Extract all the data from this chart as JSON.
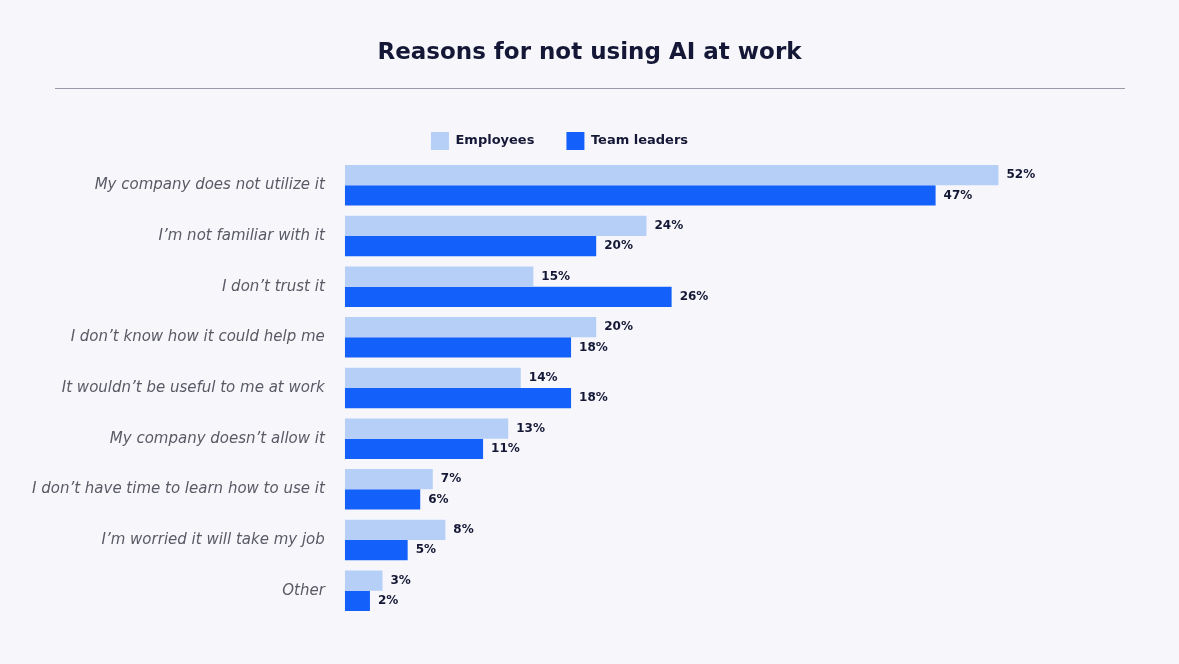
{
  "chart_data": {
    "type": "bar",
    "orientation": "horizontal",
    "title": "Reasons for not using AI at work",
    "categories": [
      "My company does not utilize it",
      "I’m not familiar with it",
      "I don’t trust it",
      "I don’t know how it could help me",
      "It wouldn’t be useful to me at work",
      "My company doesn’t allow it",
      "I don’t have time to learn how to use it",
      "I’m worried it will take my job",
      "Other"
    ],
    "series": [
      {
        "name": "Employees",
        "color": "#b6cff7",
        "values": [
          52,
          24,
          15,
          20,
          14,
          13,
          7,
          8,
          3
        ],
        "value_labels": [
          "52%",
          "24%",
          "15%",
          "20%",
          "14%",
          "13%",
          "7%",
          "8%",
          "3%"
        ]
      },
      {
        "name": "Team leaders",
        "color": "#1460fa",
        "values": [
          47,
          20,
          26,
          18,
          18,
          11,
          6,
          5,
          2
        ],
        "value_labels": [
          "47%",
          "20%",
          "26%",
          "18%",
          "18%",
          "11%",
          "6%",
          "5%",
          "2%"
        ]
      }
    ],
    "legend": "top"
  }
}
